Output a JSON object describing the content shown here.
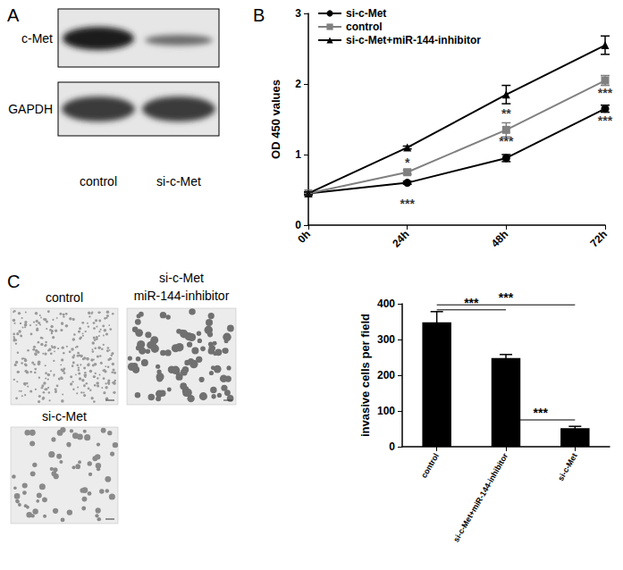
{
  "panel_labels": [
    "A",
    "B",
    "C"
  ],
  "blot": {
    "rows": [
      "c-Met",
      "GAPDH"
    ],
    "lanes": [
      "control",
      "si-c-Met"
    ]
  },
  "micrographs": [
    [
      "control"
    ],
    [
      "si-c-Met",
      "miR-144-inhibitor"
    ],
    [
      "si-c-Met"
    ]
  ],
  "chart_data": [
    {
      "type": "line",
      "x": [
        "0h",
        "24h",
        "48h",
        "72h"
      ],
      "ylabel": "OD 450 values",
      "ylim": [
        0,
        3
      ],
      "yticks": [
        0,
        1,
        2,
        3
      ],
      "grid": false,
      "legend": "upper left",
      "series": [
        {
          "name": "si-c-Met",
          "color": "#000000",
          "marker": "circle",
          "values": [
            0.45,
            0.6,
            0.95,
            1.65
          ],
          "errors": [
            0.02,
            0.02,
            0.05,
            0.05
          ]
        },
        {
          "name": "control",
          "color": "#808080",
          "marker": "square",
          "values": [
            0.45,
            0.75,
            1.35,
            2.05
          ],
          "errors": [
            0.02,
            0.03,
            0.1,
            0.07
          ]
        },
        {
          "name": "si-c-Met+miR-144-inhibitor",
          "color": "#000000",
          "marker": "triangle",
          "values": [
            0.45,
            1.1,
            1.85,
            2.55
          ],
          "errors": [
            0.02,
            0.02,
            0.13,
            0.13
          ]
        }
      ],
      "annotations": [
        {
          "text": "*",
          "x": "24h",
          "y": 0.89
        },
        {
          "text": "***",
          "x": "24h",
          "y": 0.3
        },
        {
          "text": "**",
          "x": "48h",
          "y": 1.58
        },
        {
          "text": "***",
          "x": "48h",
          "y": 1.19
        },
        {
          "text": "***",
          "x": "72h",
          "y": 1.87
        },
        {
          "text": "***",
          "x": "72h",
          "y": 1.48
        }
      ]
    },
    {
      "type": "bar",
      "categories": [
        "control",
        "si-c-Met+miR-144-inhibitor",
        "si-c-Met"
      ],
      "values": [
        348,
        248,
        52
      ],
      "errors": [
        30,
        10,
        5
      ],
      "color": "#000000",
      "ylabel": "invasive cells per field",
      "ylim": [
        0,
        400
      ],
      "yticks": [
        0,
        100,
        200,
        300,
        400
      ],
      "grid": false,
      "comparisons": [
        {
          "from": "control",
          "to": "si-c-Met+miR-144-inhibitor",
          "y": 383,
          "text": "***"
        },
        {
          "from": "control",
          "to": "si-c-Met",
          "y": 397,
          "text": "***"
        },
        {
          "from": "si-c-Met+miR-144-inhibitor",
          "to": "si-c-Met",
          "y": 75,
          "text": "***"
        }
      ]
    }
  ]
}
